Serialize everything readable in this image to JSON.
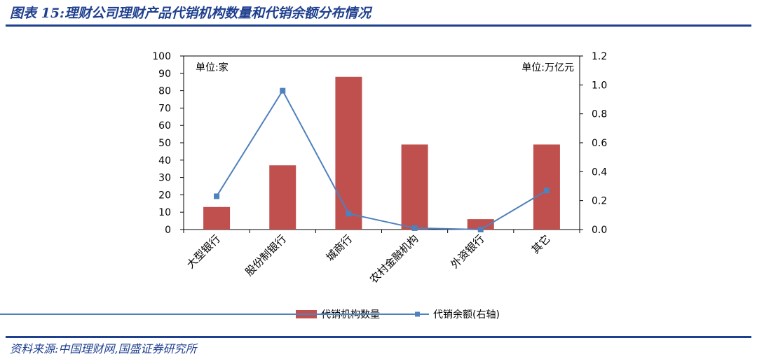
{
  "figure_title": "图表 15:理财公司理财产品代销机构数量和代销余额分布情况",
  "source_note": "资料来源:中国理财网,国盛证券研究所",
  "chart_data": {
    "type": "bar",
    "categories": [
      "大型银行",
      "股份制银行",
      "城商行",
      "农村金融机构",
      "外资银行",
      "其它"
    ],
    "series": [
      {
        "name": "代销机构数量",
        "type": "bar",
        "axis": "left",
        "values": [
          13,
          37,
          88,
          49,
          6,
          49
        ],
        "color": "#c0504d"
      },
      {
        "name": "代销余额(右轴)",
        "type": "line",
        "axis": "right",
        "values": [
          0.23,
          0.96,
          0.11,
          0.01,
          0.0,
          0.27
        ],
        "color": "#4f81bd"
      }
    ],
    "y_left": {
      "unit_label": "单位:家",
      "min": 0,
      "max": 100,
      "ticks": [
        "0",
        "10",
        "20",
        "30",
        "40",
        "50",
        "60",
        "70",
        "80",
        "90",
        "100"
      ]
    },
    "y_right": {
      "unit_label": "单位:万亿元",
      "min": 0,
      "max": 1.2,
      "ticks": [
        "0.0",
        "0.2",
        "0.4",
        "0.6",
        "0.8",
        "1.0",
        "1.2"
      ]
    },
    "grid": false,
    "legend_position": "bottom"
  }
}
